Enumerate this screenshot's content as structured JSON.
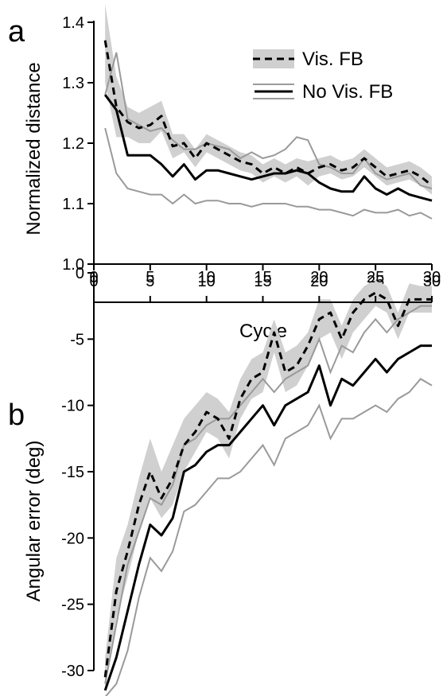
{
  "chart_data": [
    {
      "type": "line",
      "panel_label": "a",
      "xlabel": "Cycle",
      "ylabel": "Normalized distance",
      "xlim": [
        0,
        30
      ],
      "ylim": [
        1.0,
        1.4
      ],
      "xticks": [
        0,
        5,
        10,
        15,
        20,
        25,
        30
      ],
      "yticks": [
        1.0,
        1.1,
        1.2,
        1.3,
        1.4
      ],
      "xtick_labels": [
        "0",
        "5",
        "10",
        "15",
        "20",
        "25",
        "30"
      ],
      "ytick_labels": [
        "1.0",
        "1.1",
        "1.2",
        "1.3",
        "1.4"
      ],
      "x_axis_position": "bottom",
      "grid": false,
      "legend_position": "top-right",
      "legend": [
        {
          "label": "Vis. FB",
          "style": "dashed line with gray band"
        },
        {
          "label": "No Vis. FB",
          "style": "solid line between gray lines"
        }
      ],
      "series": [
        {
          "name": "Vis. FB",
          "style": "dashed",
          "color": "#000000",
          "band_color": "#d0d0d0",
          "x": [
            1,
            2,
            3,
            4,
            5,
            6,
            7,
            8,
            9,
            10,
            11,
            12,
            13,
            14,
            15,
            16,
            17,
            18,
            19,
            20,
            21,
            22,
            23,
            24,
            25,
            26,
            27,
            28,
            29,
            30
          ],
          "values": [
            1.37,
            1.26,
            1.235,
            1.225,
            1.23,
            1.245,
            1.195,
            1.2,
            1.175,
            1.2,
            1.19,
            1.18,
            1.17,
            1.165,
            1.15,
            1.16,
            1.15,
            1.16,
            1.15,
            1.16,
            1.165,
            1.155,
            1.16,
            1.175,
            1.16,
            1.145,
            1.15,
            1.155,
            1.145,
            1.13
          ],
          "band_upper": [
            1.43,
            1.31,
            1.26,
            1.25,
            1.26,
            1.27,
            1.215,
            1.215,
            1.19,
            1.215,
            1.205,
            1.195,
            1.185,
            1.18,
            1.165,
            1.175,
            1.165,
            1.175,
            1.17,
            1.175,
            1.18,
            1.17,
            1.175,
            1.19,
            1.175,
            1.16,
            1.165,
            1.17,
            1.16,
            1.145
          ],
          "band_lower": [
            1.3,
            1.21,
            1.21,
            1.2,
            1.2,
            1.22,
            1.175,
            1.185,
            1.16,
            1.185,
            1.175,
            1.165,
            1.155,
            1.15,
            1.135,
            1.145,
            1.135,
            1.145,
            1.13,
            1.145,
            1.15,
            1.14,
            1.145,
            1.16,
            1.145,
            1.13,
            1.135,
            1.14,
            1.13,
            1.115
          ]
        },
        {
          "name": "No Vis. FB",
          "style": "solid",
          "color": "#000000",
          "bound_color": "#9a9a9a",
          "x": [
            1,
            2,
            3,
            4,
            5,
            6,
            7,
            8,
            9,
            10,
            11,
            12,
            13,
            14,
            15,
            16,
            17,
            18,
            19,
            20,
            21,
            22,
            23,
            24,
            25,
            26,
            27,
            28,
            29,
            30
          ],
          "values": [
            1.28,
            1.255,
            1.18,
            1.18,
            1.18,
            1.165,
            1.145,
            1.165,
            1.14,
            1.155,
            1.155,
            1.15,
            1.145,
            1.14,
            1.145,
            1.15,
            1.15,
            1.155,
            1.15,
            1.135,
            1.125,
            1.12,
            1.12,
            1.145,
            1.125,
            1.115,
            1.125,
            1.115,
            1.11,
            1.105
          ],
          "upper": [
            1.28,
            1.35,
            1.24,
            1.23,
            1.22,
            1.225,
            1.205,
            1.19,
            1.19,
            1.2,
            1.195,
            1.19,
            1.175,
            1.185,
            1.175,
            1.18,
            1.19,
            1.21,
            1.205,
            1.165,
            1.16,
            1.15,
            1.15,
            1.175,
            1.15,
            1.14,
            1.145,
            1.15,
            1.13,
            1.125
          ],
          "lower": [
            1.225,
            1.15,
            1.125,
            1.12,
            1.115,
            1.115,
            1.1,
            1.115,
            1.1,
            1.105,
            1.105,
            1.1,
            1.1,
            1.095,
            1.1,
            1.1,
            1.1,
            1.095,
            1.095,
            1.09,
            1.09,
            1.085,
            1.08,
            1.09,
            1.085,
            1.085,
            1.09,
            1.08,
            1.085,
            1.075
          ]
        }
      ]
    },
    {
      "type": "line",
      "panel_label": "b",
      "xlabel": "",
      "ylabel": "Angular error (deg)",
      "xlim": [
        0,
        30
      ],
      "ylim": [
        -30,
        0
      ],
      "xticks": [
        0,
        5,
        10,
        15,
        20,
        25,
        30
      ],
      "yticks": [
        0,
        -5,
        -10,
        -15,
        -20,
        -25,
        -30
      ],
      "xtick_labels": [
        "0",
        "5",
        "10",
        "15",
        "20",
        "25",
        "30"
      ],
      "ytick_labels": [
        "0",
        "-5",
        "-10",
        "-15",
        "-20",
        "-25",
        "-30"
      ],
      "x_axis_position": "top",
      "grid": false,
      "series": [
        {
          "name": "Vis. FB",
          "style": "dashed",
          "color": "#000000",
          "band_color": "#d0d0d0",
          "x": [
            1,
            2,
            3,
            4,
            5,
            6,
            7,
            8,
            9,
            10,
            11,
            12,
            13,
            14,
            15,
            16,
            17,
            18,
            19,
            20,
            21,
            22,
            23,
            24,
            25,
            26,
            27,
            28,
            29,
            30
          ],
          "values": [
            -30.5,
            -24,
            -21,
            -17.5,
            -15,
            -17,
            -15.5,
            -13,
            -12,
            -10.5,
            -11,
            -12.5,
            -9.5,
            -8,
            -7.5,
            -4.5,
            -7.5,
            -7,
            -5.5,
            -3.5,
            -3,
            -5,
            -3,
            -2,
            -1.5,
            -2,
            -4,
            -2,
            -2,
            -2
          ],
          "band_upper": [
            -29,
            -21.5,
            -19,
            -15.5,
            -12.5,
            -15,
            -13,
            -11,
            -10,
            -9,
            -9.5,
            -10.5,
            -8,
            -6.5,
            -6,
            -3.5,
            -6,
            -5.5,
            -4.5,
            -2,
            -2,
            -4,
            -2,
            -1,
            -0.5,
            -1,
            -3,
            -0.8,
            -1,
            -1
          ],
          "band_lower": [
            -31.5,
            -26,
            -23,
            -19.5,
            -17,
            -18.5,
            -17.5,
            -15,
            -13.5,
            -12,
            -12.5,
            -14,
            -11,
            -9.5,
            -9,
            -6,
            -9,
            -8.5,
            -7,
            -5,
            -4.5,
            -6.5,
            -4.5,
            -3.5,
            -2.5,
            -3,
            -5,
            -3,
            -3,
            -3
          ]
        },
        {
          "name": "No Vis. FB",
          "style": "solid",
          "color": "#000000",
          "bound_color": "#9a9a9a",
          "x": [
            1,
            2,
            3,
            4,
            5,
            6,
            7,
            8,
            9,
            10,
            11,
            12,
            13,
            14,
            15,
            16,
            17,
            18,
            19,
            20,
            21,
            22,
            23,
            24,
            25,
            26,
            27,
            28,
            29,
            30
          ],
          "values": [
            -31.5,
            -29,
            -25.5,
            -22,
            -19,
            -19.8,
            -18.5,
            -15,
            -14.5,
            -13.5,
            -13,
            -13,
            -12,
            -11,
            -10,
            -11.5,
            -10,
            -9.5,
            -9,
            -7,
            -10,
            -8,
            -8.5,
            -7.5,
            -6.5,
            -7.5,
            -6.5,
            -6,
            -5.5,
            -5.5
          ],
          "upper": [
            -31,
            -26.5,
            -22,
            -19.5,
            -17,
            -17.5,
            -16,
            -13,
            -12.5,
            -11.5,
            -11,
            -11,
            -10,
            -9,
            -8,
            -9,
            -8,
            -7.5,
            -7,
            -5,
            -7.5,
            -5.5,
            -6,
            -4.5,
            -3.5,
            -4.5,
            -3.5,
            -3,
            -2.5,
            -2.5
          ],
          "lower": [
            -32,
            -31,
            -28.5,
            -24.5,
            -21.5,
            -22.5,
            -21,
            -18,
            -17.5,
            -16.5,
            -15.5,
            -15.5,
            -15,
            -14,
            -13,
            -14.5,
            -12.5,
            -12,
            -11.5,
            -10,
            -12.5,
            -11,
            -11,
            -10.5,
            -10,
            -10.5,
            -9.5,
            -9,
            -8,
            -8.5
          ]
        }
      ]
    }
  ]
}
